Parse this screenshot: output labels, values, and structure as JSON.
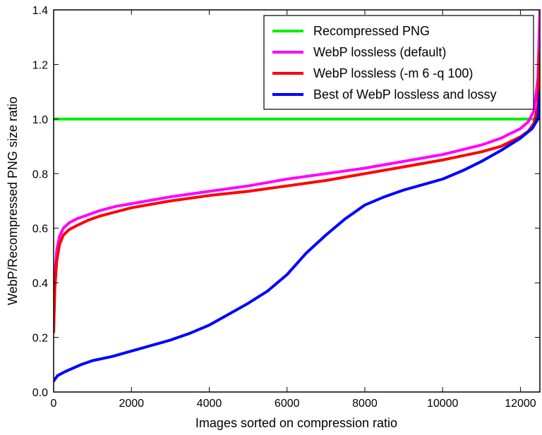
{
  "chart_data": {
    "type": "line",
    "title": "",
    "xlabel": "Images sorted on compression ratio",
    "ylabel": "WebP/Recompressed PNG size ratio",
    "xlim": [
      0,
      12500
    ],
    "ylim": [
      0.0,
      1.4
    ],
    "x_ticks": [
      0,
      2000,
      4000,
      6000,
      8000,
      10000,
      12000
    ],
    "x_tick_labels": [
      "0",
      "2000",
      "4000",
      "6000",
      "8000",
      "10000",
      "12000"
    ],
    "y_ticks": [
      0.0,
      0.2,
      0.4,
      0.6,
      0.8,
      1.0,
      1.2,
      1.4
    ],
    "y_tick_labels": [
      "0.0",
      "0.2",
      "0.4",
      "0.6",
      "0.8",
      "1.0",
      "1.2",
      "1.4"
    ],
    "grid": false,
    "legend_position": "top-right",
    "series": [
      {
        "name": "Recompressed PNG",
        "color": "#00ee00",
        "x": [
          0,
          12500
        ],
        "y": [
          1.0,
          1.0
        ]
      },
      {
        "name": "WebP lossless (default)",
        "color": "#ff00ff",
        "x": [
          0,
          30,
          80,
          150,
          250,
          400,
          600,
          900,
          1200,
          1600,
          2000,
          3000,
          4000,
          5000,
          6000,
          7000,
          8000,
          9000,
          10000,
          11000,
          11500,
          12000,
          12200,
          12350,
          12450,
          12500
        ],
        "y": [
          0.24,
          0.42,
          0.52,
          0.57,
          0.6,
          0.62,
          0.635,
          0.65,
          0.665,
          0.68,
          0.69,
          0.715,
          0.735,
          0.755,
          0.78,
          0.8,
          0.82,
          0.845,
          0.87,
          0.905,
          0.93,
          0.965,
          0.99,
          1.03,
          1.15,
          1.4
        ]
      },
      {
        "name": "WebP lossless (-m 6 -q 100)",
        "color": "#ff0000",
        "x": [
          0,
          30,
          80,
          150,
          250,
          400,
          600,
          900,
          1200,
          1600,
          2000,
          3000,
          4000,
          5000,
          6000,
          7000,
          8000,
          9000,
          10000,
          11000,
          11500,
          12000,
          12200,
          12350,
          12450,
          12500
        ],
        "y": [
          0.22,
          0.38,
          0.48,
          0.54,
          0.575,
          0.595,
          0.61,
          0.63,
          0.645,
          0.66,
          0.675,
          0.7,
          0.72,
          0.735,
          0.755,
          0.775,
          0.8,
          0.825,
          0.85,
          0.88,
          0.9,
          0.935,
          0.955,
          0.985,
          1.05,
          1.25
        ]
      },
      {
        "name": "Best of WebP lossless and lossy",
        "color": "#0000ff",
        "x": [
          0,
          100,
          300,
          700,
          1000,
          1500,
          2000,
          2500,
          3000,
          3500,
          4000,
          4500,
          5000,
          5500,
          6000,
          6500,
          7000,
          7500,
          8000,
          8500,
          9000,
          9500,
          10000,
          10500,
          11000,
          11500,
          12000,
          12300,
          12450,
          12500
        ],
        "y": [
          0.04,
          0.06,
          0.075,
          0.1,
          0.115,
          0.13,
          0.15,
          0.17,
          0.19,
          0.215,
          0.245,
          0.285,
          0.325,
          0.37,
          0.43,
          0.51,
          0.575,
          0.635,
          0.685,
          0.715,
          0.74,
          0.76,
          0.78,
          0.81,
          0.845,
          0.885,
          0.93,
          0.965,
          1.0,
          1.1
        ]
      }
    ]
  }
}
